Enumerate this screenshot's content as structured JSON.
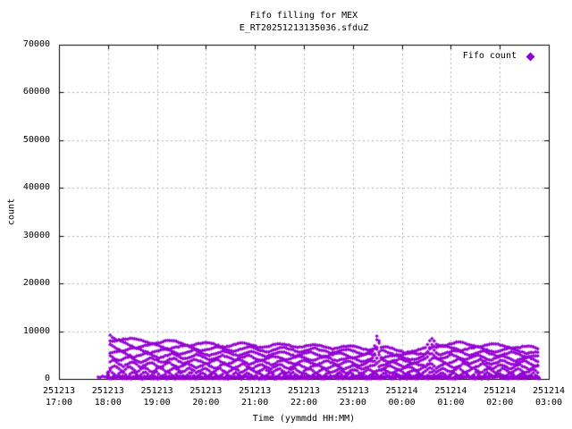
{
  "colors": {
    "background": "#ffffff",
    "border": "#000000",
    "grid": "#b0b0b0",
    "points": "#9400d3",
    "text": "#000000"
  },
  "chart_data": {
    "type": "scatter",
    "title": "Fifo filling for MEX",
    "subtitle": "E_RT20251213135036.sfduZ",
    "xlabel": "Time (yymmdd HH:MM)",
    "ylabel": "count",
    "ylim": [
      0,
      70000
    ],
    "grid": "dashed, on every hour and every 10000 counts",
    "legend": {
      "label": "Fifo count",
      "marker": "diamond",
      "position": "top-right inside plot"
    },
    "yticks": [
      0,
      10000,
      20000,
      30000,
      40000,
      50000,
      60000,
      70000
    ],
    "xticks": [
      {
        "date": "251213",
        "time": "17:00"
      },
      {
        "date": "251213",
        "time": "18:00"
      },
      {
        "date": "251213",
        "time": "19:00"
      },
      {
        "date": "251213",
        "time": "20:00"
      },
      {
        "date": "251213",
        "time": "21:00"
      },
      {
        "date": "251213",
        "time": "22:00"
      },
      {
        "date": "251213",
        "time": "23:00"
      },
      {
        "date": "251214",
        "time": "00:00"
      },
      {
        "date": "251214",
        "time": "01:00"
      },
      {
        "date": "251214",
        "time": "02:00"
      },
      {
        "date": "251214",
        "time": "03:00"
      }
    ],
    "series": [
      {
        "name": "Fifo count",
        "marker": "diamond",
        "color": "#9400d3",
        "description": "Dense cloud of diamond markers: ~8 braided wavy bands evenly spaced between ~900 and the envelope top, plus a solid strip at 0-600. Data runs from 251213 ~17:48 (strip) / 18:00 (bands) to 251214 ~02:48. Peak ~9300 at 18:02, narrow spikes to ~9500 at 23:30 and ~8700 at 00:36.",
        "x_start": "251213 18:00",
        "x_end": "251214 02:48",
        "value_range": [
          0,
          9500
        ],
        "envelope_keyframes": [
          [
            60,
            1500
          ],
          [
            62,
            9300
          ],
          [
            68,
            8900
          ],
          [
            80,
            8400
          ],
          [
            95,
            8000
          ],
          [
            110,
            7900
          ],
          [
            135,
            7700
          ],
          [
            165,
            7400
          ],
          [
            195,
            7100
          ],
          [
            225,
            7200
          ],
          [
            255,
            6900
          ],
          [
            285,
            7100
          ],
          [
            315,
            6800
          ],
          [
            345,
            6700
          ],
          [
            372,
            6400
          ],
          [
            386,
            6600
          ],
          [
            390,
            9500
          ],
          [
            394,
            6500
          ],
          [
            410,
            6200
          ],
          [
            425,
            5900
          ],
          [
            440,
            5800
          ],
          [
            450,
            6300
          ],
          [
            456,
            8700
          ],
          [
            462,
            7600
          ],
          [
            475,
            7300
          ],
          [
            490,
            7400
          ],
          [
            510,
            7200
          ],
          [
            530,
            7000
          ],
          [
            555,
            6900
          ],
          [
            575,
            6600
          ],
          [
            588,
            6200
          ]
        ],
        "generation": {
          "seed": 42,
          "step_minutes": 2.7,
          "strip_start_minute": 48,
          "bands_start_minute": 60,
          "end_minute": 588,
          "bands": 8,
          "strip_max": 620,
          "minutes_origin": "17:00",
          "minutes_span": 600
        }
      }
    ]
  }
}
